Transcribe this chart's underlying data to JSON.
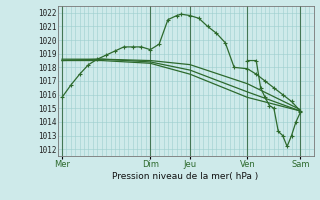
{
  "bg_color": "#ceeaea",
  "grid_color": "#9dcfcf",
  "line_color": "#2d6a2d",
  "xlabel": "Pression niveau de la mer( hPa )",
  "ylim": [
    1011.5,
    1022.5
  ],
  "yticks": [
    1012,
    1013,
    1014,
    1015,
    1016,
    1017,
    1018,
    1019,
    1020,
    1021,
    1022
  ],
  "xlim": [
    0,
    29
  ],
  "x_day_labels": [
    "Mer",
    "Dim",
    "Jeu",
    "Ven",
    "Sam"
  ],
  "x_day_positions": [
    0.5,
    10.5,
    15.0,
    21.5,
    27.5
  ],
  "x_sep_positions": [
    0.5,
    10.5,
    15.0,
    21.5,
    27.5
  ],
  "s1_x": [
    0.5,
    1.5,
    2.5,
    3.5,
    4.5,
    5.5,
    6.5,
    7.5,
    8.5,
    9.5,
    10.5,
    11.5,
    12.5,
    13.5,
    14.0,
    15.0,
    16.0,
    17.0,
    18.0,
    19.0,
    20.0,
    21.5,
    22.5,
    23.5,
    24.5,
    25.5,
    26.5,
    27.5
  ],
  "s1_y": [
    1015.8,
    1016.7,
    1017.5,
    1018.2,
    1018.6,
    1018.9,
    1019.2,
    1019.5,
    1019.5,
    1019.5,
    1019.3,
    1019.7,
    1021.5,
    1021.8,
    1021.9,
    1021.8,
    1021.6,
    1021.0,
    1020.5,
    1019.8,
    1018.0,
    1017.9,
    1017.5,
    1017.0,
    1016.5,
    1016.0,
    1015.5,
    1014.8
  ],
  "s2_x": [
    0.5,
    5.0,
    10.5,
    15.0,
    21.5,
    27.5
  ],
  "s2_y": [
    1018.5,
    1018.6,
    1018.5,
    1018.2,
    1016.8,
    1014.9
  ],
  "s3_x": [
    0.5,
    5.0,
    10.5,
    15.0,
    21.5,
    27.5
  ],
  "s3_y": [
    1018.6,
    1018.6,
    1018.4,
    1017.8,
    1016.2,
    1014.8
  ],
  "s4_x": [
    0.5,
    5.0,
    10.5,
    15.0,
    21.5,
    27.5
  ],
  "s4_y": [
    1018.5,
    1018.5,
    1018.3,
    1017.5,
    1015.8,
    1014.8
  ],
  "s5_x": [
    21.5,
    22.5,
    23.0,
    23.5,
    24.0,
    24.5,
    25.0,
    25.5,
    26.0,
    26.5,
    27.0,
    27.5
  ],
  "s5_y": [
    1018.5,
    1018.5,
    1016.5,
    1015.8,
    1015.2,
    1015.0,
    1013.3,
    1013.0,
    1012.2,
    1013.0,
    1014.0,
    1014.7
  ]
}
